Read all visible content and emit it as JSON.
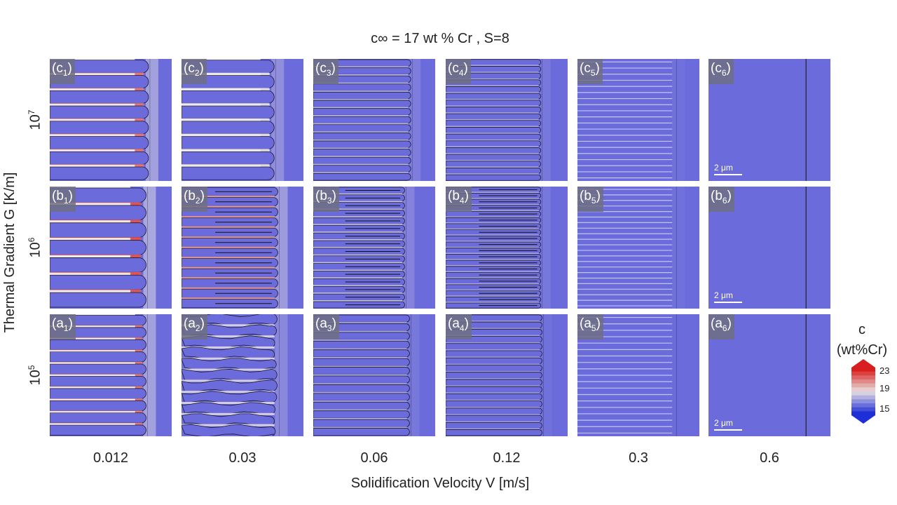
{
  "title": "c∞ = 17 wt % Cr , S=8",
  "x_axis_label": "Solidification Velocity V [m/s]",
  "y_axis_label": "Thermal Gradient G [K/m]",
  "velocities": [
    "0.012",
    "0.03",
    "0.06",
    "0.12",
    "0.3",
    "0.6"
  ],
  "gradients": [
    {
      "row": "c",
      "base": "10",
      "exp": "7"
    },
    {
      "row": "b",
      "base": "10",
      "exp": "6"
    },
    {
      "row": "a",
      "base": "10",
      "exp": "5"
    }
  ],
  "scale_bar_label": "2 μm",
  "colorbar": {
    "title_line1": "c",
    "title_line2": "(wt%Cr)",
    "ticks": [
      "23",
      "19",
      "15"
    ],
    "min": 15,
    "mid": 19,
    "max": 23,
    "colors": {
      "low": "#1f2fd8",
      "mid": "#e8e0e0",
      "high": "#d81e1e"
    }
  },
  "colors": {
    "background": "#6b6bdc",
    "label_box": "#6e6e82"
  },
  "panels": [
    {
      "id": "c1",
      "letter": "c",
      "num": "1",
      "morph": "cells",
      "n": 8,
      "front": 0.81,
      "enrich": 0.9,
      "scale": false
    },
    {
      "id": "c2",
      "letter": "c",
      "num": "2",
      "morph": "cells",
      "n": 8,
      "front": 0.76,
      "enrich": 0.6,
      "scale": false
    },
    {
      "id": "c3",
      "letter": "c",
      "num": "3",
      "morph": "cells",
      "n": 15,
      "front": 0.8,
      "enrich": 0.3,
      "scale": false
    },
    {
      "id": "c4",
      "letter": "c",
      "num": "4",
      "morph": "cells",
      "n": 18,
      "front": 0.78,
      "enrich": 0.2,
      "scale": false
    },
    {
      "id": "c5",
      "letter": "c",
      "num": "5",
      "morph": "lines",
      "n": 20,
      "front": 0.8,
      "enrich": 0.1,
      "scale": false
    },
    {
      "id": "c6",
      "letter": "c",
      "num": "6",
      "morph": "planar",
      "n": 0,
      "front": 0.8,
      "enrich": 0.0,
      "scale": true
    },
    {
      "id": "b1",
      "letter": "b",
      "num": "1",
      "morph": "cells",
      "n": 7,
      "front": 0.79,
      "enrich": 1.0,
      "scale": false
    },
    {
      "id": "b2",
      "letter": "b",
      "num": "2",
      "morph": "dendrite",
      "n": 12,
      "front": 0.79,
      "enrich": 0.8,
      "scale": false
    },
    {
      "id": "b3",
      "letter": "b",
      "num": "3",
      "morph": "dendrite",
      "n": 16,
      "front": 0.75,
      "enrich": 0.4,
      "scale": false
    },
    {
      "id": "b4",
      "letter": "b",
      "num": "4",
      "morph": "dendrite",
      "n": 20,
      "front": 0.78,
      "enrich": 0.2,
      "scale": false
    },
    {
      "id": "b5",
      "letter": "b",
      "num": "5",
      "morph": "lines",
      "n": 22,
      "front": 0.8,
      "enrich": 0.1,
      "scale": false
    },
    {
      "id": "b6",
      "letter": "b",
      "num": "6",
      "morph": "planar",
      "n": 0,
      "front": 0.8,
      "enrich": 0.0,
      "scale": true
    },
    {
      "id": "a1",
      "letter": "a",
      "num": "1",
      "morph": "cells",
      "n": 10,
      "front": 0.79,
      "enrich": 0.9,
      "scale": false
    },
    {
      "id": "a2",
      "letter": "a",
      "num": "2",
      "morph": "wavy",
      "n": 11,
      "front": 0.79,
      "enrich": 0.5,
      "scale": false
    },
    {
      "id": "a3",
      "letter": "a",
      "num": "3",
      "morph": "cells",
      "n": 14,
      "front": 0.79,
      "enrich": 0.2,
      "scale": false
    },
    {
      "id": "a4",
      "letter": "a",
      "num": "4",
      "morph": "cells",
      "n": 17,
      "front": 0.79,
      "enrich": 0.1,
      "scale": false
    },
    {
      "id": "a5",
      "letter": "a",
      "num": "5",
      "morph": "lines",
      "n": 19,
      "front": 0.8,
      "enrich": 0.0,
      "scale": false
    },
    {
      "id": "a6",
      "letter": "a",
      "num": "6",
      "morph": "planar",
      "n": 0,
      "front": 0.8,
      "enrich": 0.0,
      "scale": true
    }
  ]
}
